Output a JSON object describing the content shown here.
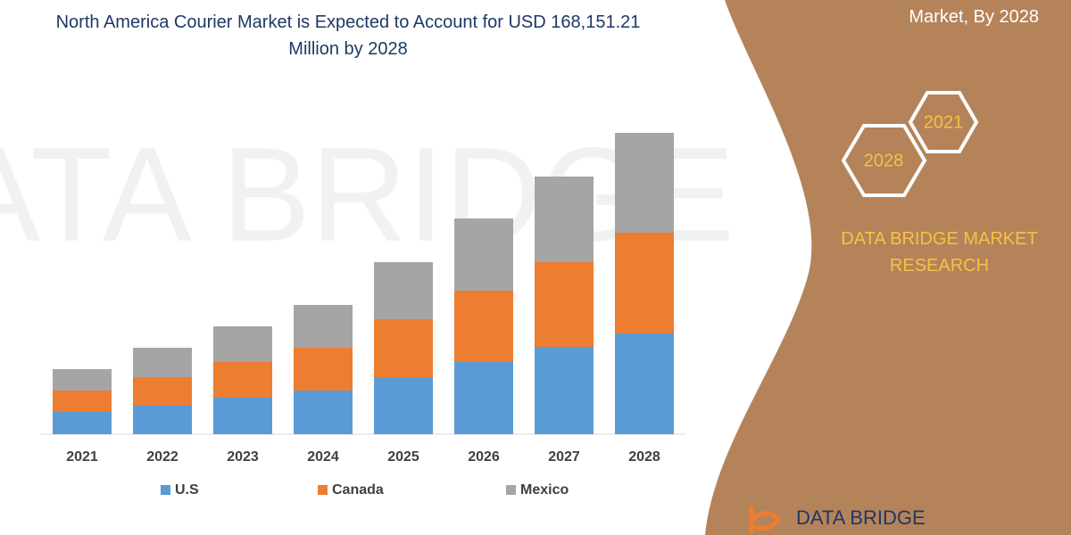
{
  "chart_data": {
    "type": "bar",
    "stacked": true,
    "title": "North America Courier Market is Expected to Account for USD 168,151.21 Million by 2028",
    "categories": [
      "2021",
      "2022",
      "2023",
      "2024",
      "2025",
      "2026",
      "2027",
      "2028"
    ],
    "series": [
      {
        "name": "U.S",
        "color": "#5b9bd5",
        "values": [
          25,
          32,
          41,
          49,
          64,
          81,
          98,
          113
        ]
      },
      {
        "name": "Canada",
        "color": "#ed7d31",
        "values": [
          24,
          32,
          40,
          48,
          65,
          80,
          95,
          113
        ]
      },
      {
        "name": "Mexico",
        "color": "#a5a5a5",
        "values": [
          24,
          33,
          40,
          48,
          64,
          81,
          96,
          112
        ]
      }
    ],
    "ylim": [
      0,
      340
    ],
    "legend": "bottom"
  },
  "banner": {
    "subtitle": "Market, By 2028",
    "hexagons": [
      "2021",
      "2028"
    ],
    "brand": "DATA BRIDGE MARKET RESEARCH",
    "logo": "DATA BRIDGE",
    "watermark": "DATA BRIDGE"
  }
}
